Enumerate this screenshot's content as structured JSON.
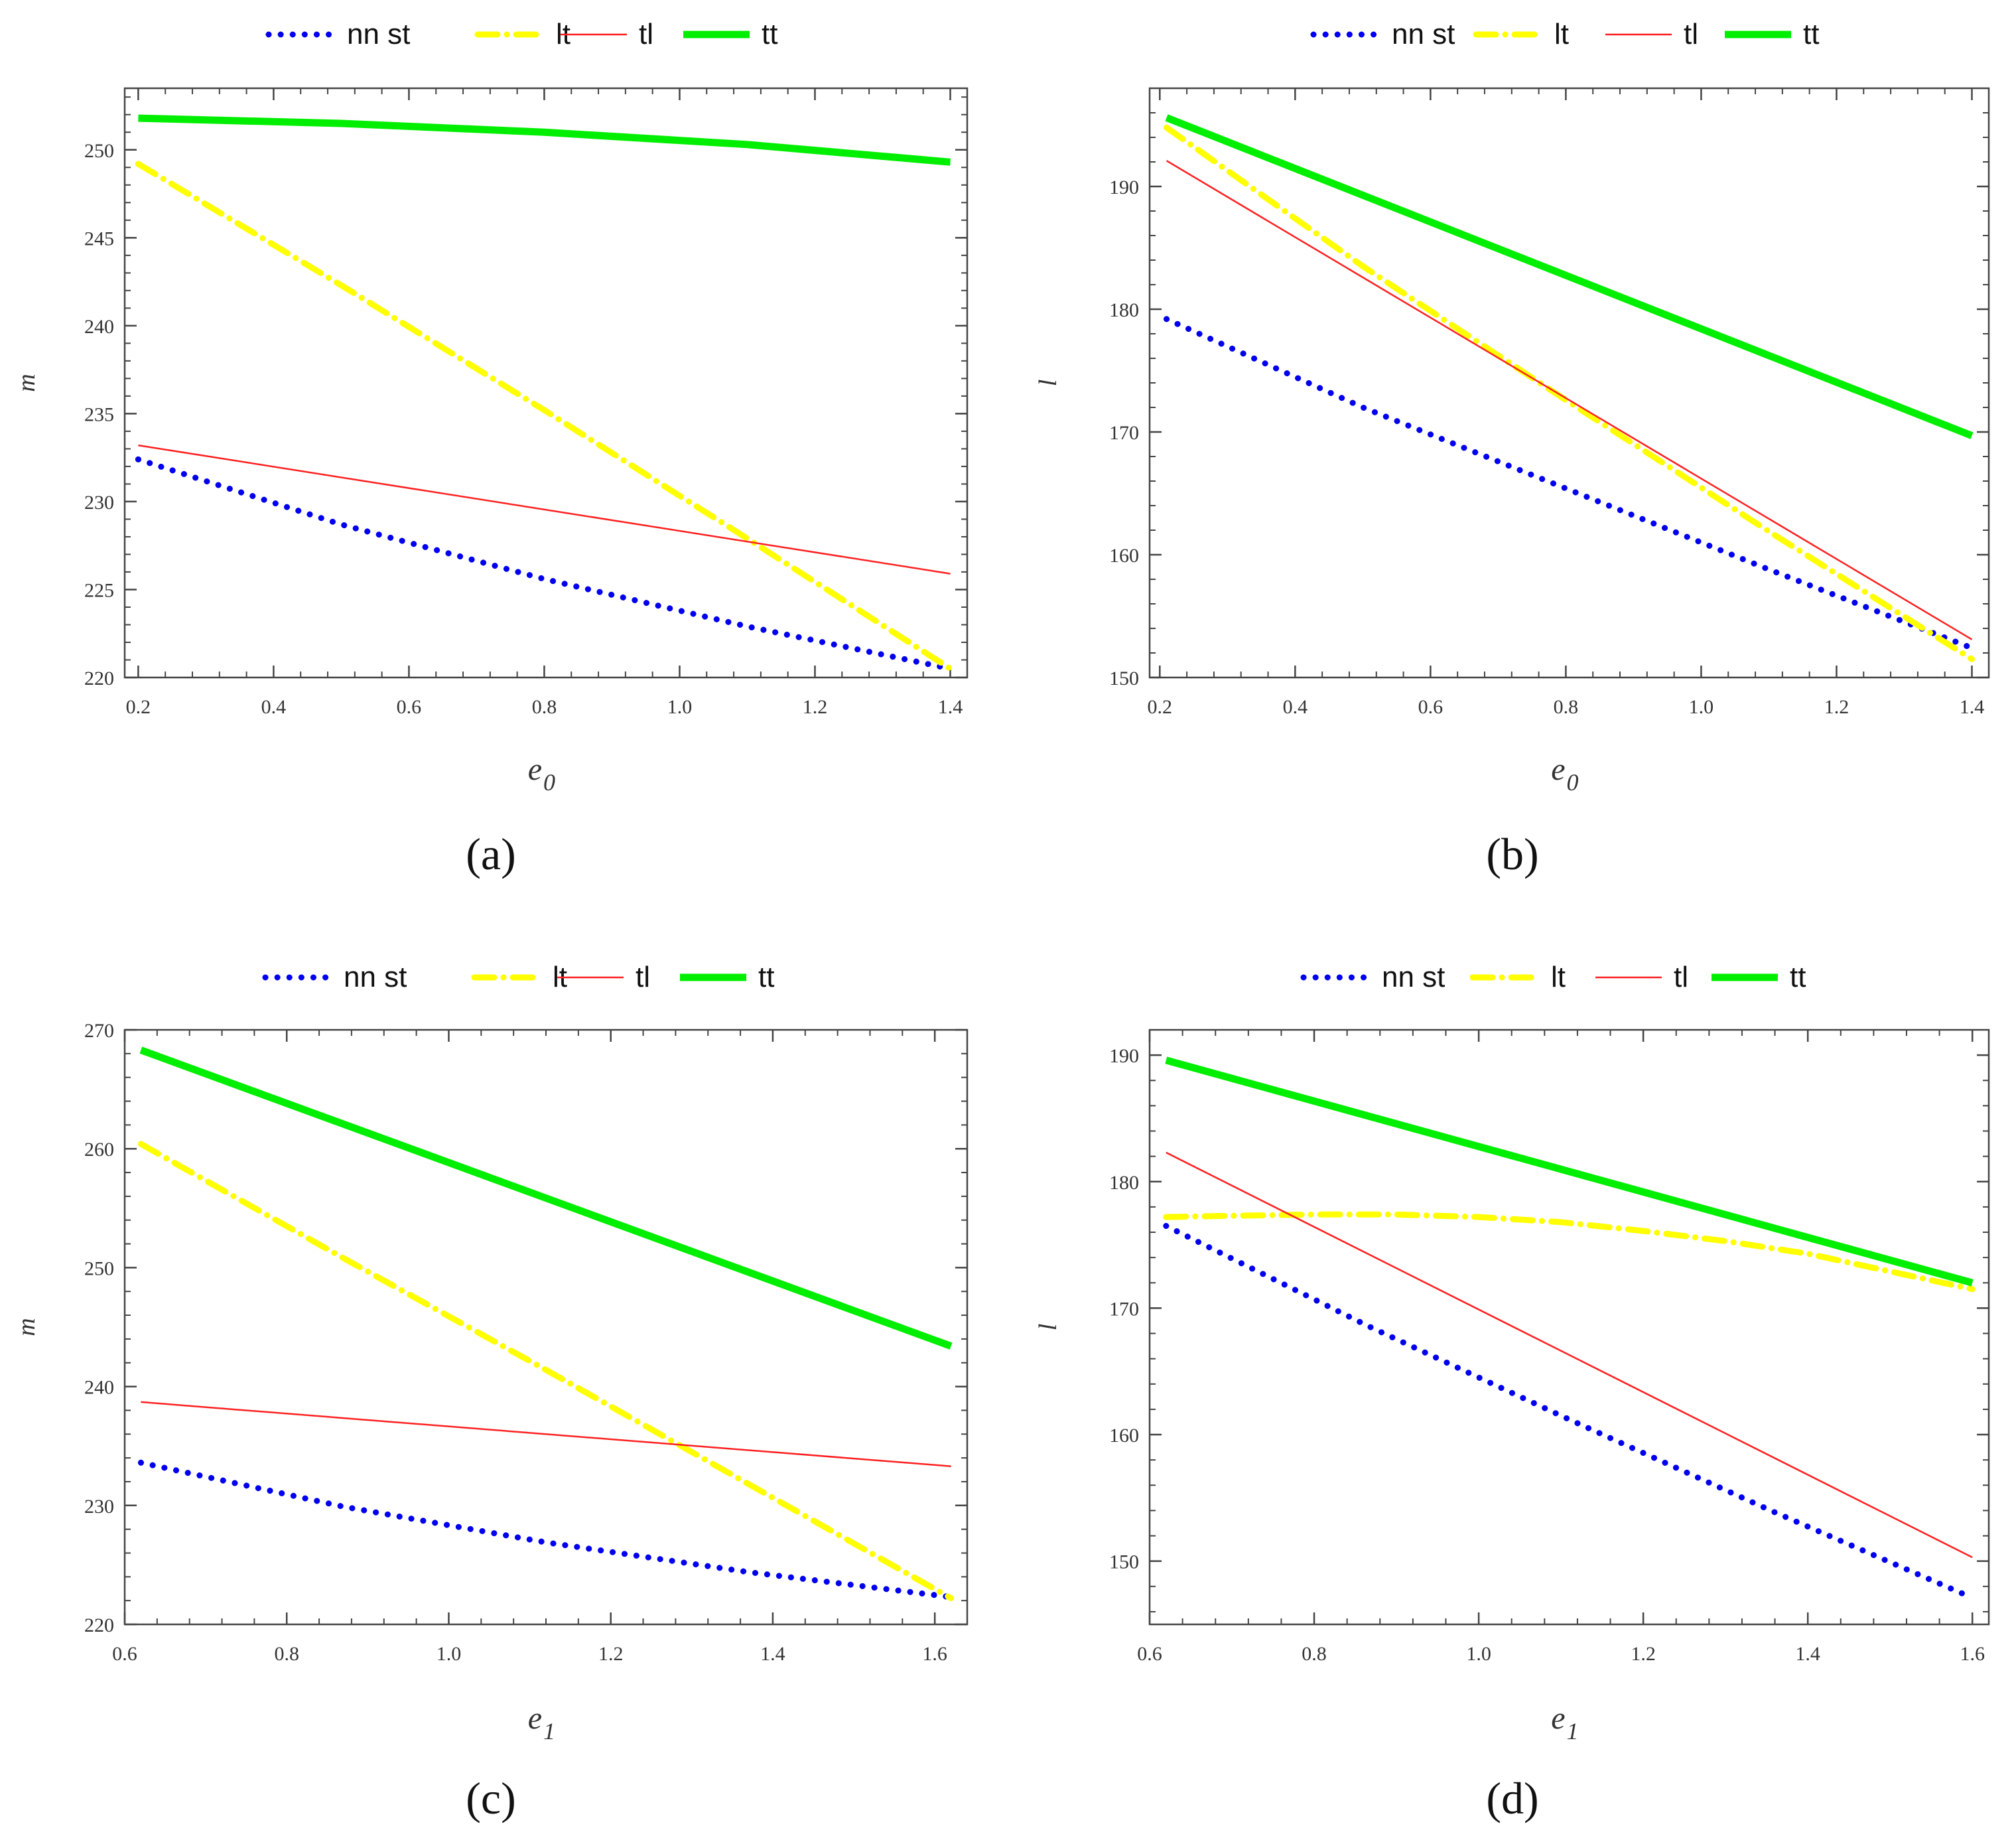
{
  "series_style": [
    {
      "key": "nn_st",
      "color": "#0000ee",
      "style": "dotted"
    },
    {
      "key": "lt",
      "color": "#ffff00",
      "style": "dashdot"
    },
    {
      "key": "tl",
      "color": "#ff2020",
      "style": "thin"
    },
    {
      "key": "tt",
      "color": "#00ee00",
      "style": "thick"
    }
  ],
  "chart_data": [
    {
      "type": "line",
      "panel_label": "(a)",
      "legend": [
        "nn st",
        "lt",
        "tl",
        "tt"
      ],
      "xlabel_main": "e",
      "xlabel_sub": "0",
      "ylabel": "m",
      "xlim": [
        0.18,
        1.425
      ],
      "ylim": [
        220,
        253.5
      ],
      "xticks": [
        0.2,
        0.4,
        0.6,
        0.8,
        1.0,
        1.2,
        1.4
      ],
      "xtick_labels": [
        "0.2",
        "0.4",
        "0.6",
        "0.8",
        "1.0",
        "1.2",
        "1.4"
      ],
      "yticks": [
        220,
        225,
        230,
        235,
        240,
        245,
        250
      ],
      "ytick_labels": [
        "220",
        "225",
        "230",
        "235",
        "240",
        "245",
        "250"
      ],
      "series": [
        {
          "name": "nn st",
          "x": [
            0.2,
            0.5,
            0.8,
            1.1,
            1.4
          ],
          "values": [
            232.4,
            228.7,
            225.6,
            222.9,
            220.5
          ]
        },
        {
          "name": "lt",
          "x": [
            0.2,
            0.5,
            0.8,
            1.1,
            1.4
          ],
          "values": [
            249.2,
            242.3,
            235.2,
            227.9,
            220.5
          ]
        },
        {
          "name": "tl",
          "x": [
            0.2,
            1.4
          ],
          "values": [
            233.2,
            225.9
          ]
        },
        {
          "name": "tt",
          "x": [
            0.2,
            0.5,
            0.8,
            1.1,
            1.4
          ],
          "values": [
            251.8,
            251.5,
            251.0,
            250.3,
            249.3
          ]
        }
      ]
    },
    {
      "type": "line",
      "panel_label": "(b)",
      "legend": [
        "nn st",
        "lt",
        "tl",
        "tt"
      ],
      "xlabel_main": "e",
      "xlabel_sub": "0",
      "ylabel": "l",
      "xlim": [
        0.185,
        1.425
      ],
      "ylim": [
        150,
        198
      ],
      "xticks": [
        0.2,
        0.4,
        0.6,
        0.8,
        1.0,
        1.2,
        1.4
      ],
      "xtick_labels": [
        "0.2",
        "0.4",
        "0.6",
        "0.8",
        "1.0",
        "1.2",
        "1.4"
      ],
      "yticks": [
        150,
        160,
        170,
        180,
        190
      ],
      "ytick_labels": [
        "150",
        "160",
        "170",
        "180",
        "190"
      ],
      "series": [
        {
          "name": "nn st",
          "x": [
            0.21,
            0.5,
            0.8,
            1.1,
            1.4
          ],
          "values": [
            179.2,
            172.0,
            165.4,
            158.8,
            152.4
          ]
        },
        {
          "name": "lt",
          "x": [
            0.21,
            0.5,
            0.8,
            1.1,
            1.4
          ],
          "values": [
            194.8,
            183.5,
            172.6,
            161.9,
            151.5
          ]
        },
        {
          "name": "tl",
          "x": [
            0.21,
            1.4
          ],
          "values": [
            192.1,
            153.1
          ]
        },
        {
          "name": "tt",
          "x": [
            0.21,
            1.4
          ],
          "values": [
            195.6,
            169.7
          ]
        }
      ]
    },
    {
      "type": "line",
      "panel_label": "(c)",
      "legend": [
        "nn st",
        "lt",
        "tl",
        "tt"
      ],
      "xlabel_main": "e",
      "xlabel_sub": "1",
      "ylabel": "m",
      "xlim": [
        0.6,
        1.64
      ],
      "ylim": [
        220,
        270
      ],
      "xticks": [
        0.6,
        0.8,
        1.0,
        1.2,
        1.4,
        1.6
      ],
      "xtick_labels": [
        "0.6",
        "0.8",
        "1.0",
        "1.2",
        "1.4",
        "1.6"
      ],
      "yticks": [
        220,
        230,
        240,
        250,
        260,
        270
      ],
      "ytick_labels": [
        "220",
        "230",
        "240",
        "250",
        "260",
        "270"
      ],
      "series": [
        {
          "name": "nn st",
          "x": [
            0.62,
            0.87,
            1.12,
            1.37,
            1.62
          ],
          "values": [
            233.6,
            229.9,
            226.9,
            224.4,
            222.3
          ]
        },
        {
          "name": "lt",
          "x": [
            0.62,
            0.87,
            1.12,
            1.37,
            1.62
          ],
          "values": [
            260.4,
            250.8,
            241.4,
            231.8,
            222.2
          ]
        },
        {
          "name": "tl",
          "x": [
            0.62,
            1.62
          ],
          "values": [
            238.7,
            233.3
          ]
        },
        {
          "name": "tt",
          "x": [
            0.62,
            1.62
          ],
          "values": [
            268.3,
            243.4
          ]
        }
      ]
    },
    {
      "type": "line",
      "panel_label": "(d)",
      "legend": [
        "nn st",
        "lt",
        "tl",
        "tt"
      ],
      "xlabel_main": "e",
      "xlabel_sub": "1",
      "ylabel": "l",
      "xlim": [
        0.6,
        1.62
      ],
      "ylim": [
        145,
        192
      ],
      "xticks": [
        0.6,
        0.8,
        1.0,
        1.2,
        1.4,
        1.6
      ],
      "xtick_labels": [
        "0.6",
        "0.8",
        "1.0",
        "1.2",
        "1.4",
        "1.6"
      ],
      "yticks": [
        150,
        160,
        170,
        180,
        190
      ],
      "ytick_labels": [
        "150",
        "160",
        "170",
        "180",
        "190"
      ],
      "series": [
        {
          "name": "nn st",
          "x": [
            0.62,
            0.865,
            1.11,
            1.355,
            1.6
          ],
          "values": [
            176.5,
            168.6,
            161.2,
            154.0,
            147.1
          ]
        },
        {
          "name": "lt",
          "x": [
            0.62,
            0.7,
            0.8,
            0.9,
            1.0,
            1.1,
            1.2,
            1.3,
            1.4,
            1.5,
            1.6
          ],
          "values": [
            177.2,
            177.3,
            177.4,
            177.4,
            177.2,
            176.8,
            176.1,
            175.3,
            174.3,
            172.9,
            171.5
          ]
        },
        {
          "name": "tl",
          "x": [
            0.62,
            1.6
          ],
          "values": [
            182.3,
            150.3
          ]
        },
        {
          "name": "tt",
          "x": [
            0.62,
            1.6
          ],
          "values": [
            189.6,
            172.0
          ]
        }
      ]
    }
  ]
}
